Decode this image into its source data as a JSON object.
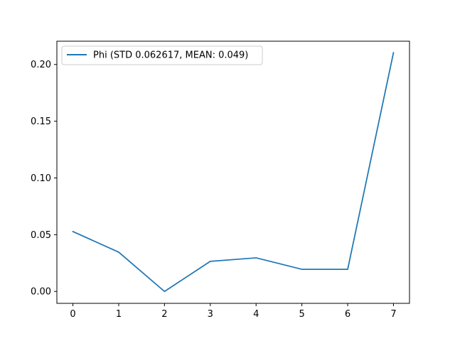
{
  "chart_data": {
    "type": "line",
    "title": "",
    "xlabel": "",
    "ylabel": "",
    "x": [
      0,
      1,
      2,
      3,
      4,
      5,
      6,
      7
    ],
    "xlim": [
      -0.35,
      7.35
    ],
    "ylim": [
      -0.0105,
      0.2205
    ],
    "xticks": [
      0,
      1,
      2,
      3,
      4,
      5,
      6,
      7
    ],
    "yticks": [
      0.0,
      0.05,
      0.1,
      0.15,
      0.2
    ],
    "ytick_labels": [
      "0.00",
      "0.05",
      "0.10",
      "0.15",
      "0.20"
    ],
    "grid": false,
    "legend_position": "upper-left",
    "series": [
      {
        "name": "Phi (STD 0.062617, MEAN: 0.049)",
        "color": "#1f77b4",
        "values": [
          0.0528,
          0.0346,
          0.0,
          0.0265,
          0.0296,
          0.0195,
          0.0195,
          0.2104
        ]
      }
    ]
  }
}
